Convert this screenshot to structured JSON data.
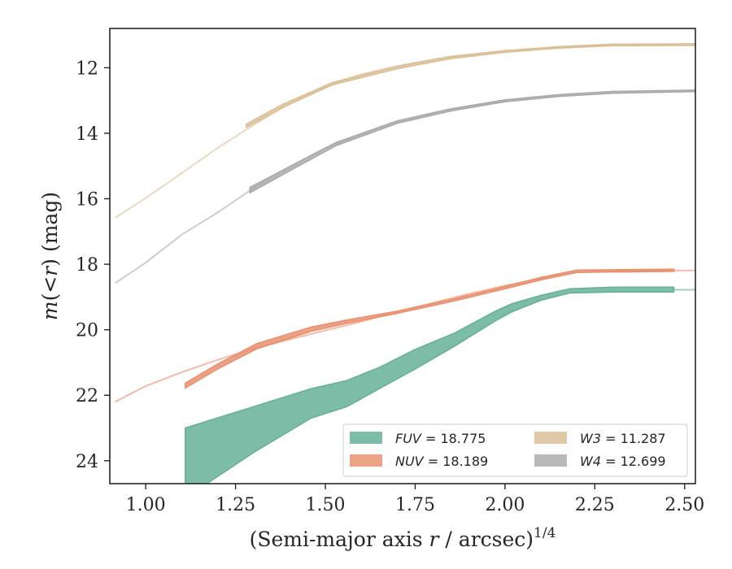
{
  "chart_data": {
    "type": "area",
    "xlabel": "(Semi-major axis r / arcsec)^1/4",
    "xlabel_parts": {
      "pre": "(Semi-major axis ",
      "var": "r",
      "post": " / arcsec)",
      "sup": "1/4"
    },
    "ylabel": "m(<r) (mag)",
    "ylabel_parts": {
      "pre": "m",
      "mid": "(<",
      "var": "r",
      "post": ") (mag)"
    },
    "xlim": [
      0.9,
      2.53
    ],
    "ylim": [
      24.7,
      10.8
    ],
    "y_inverted": true,
    "x_ticks": [
      "1.00",
      "1.25",
      "1.50",
      "1.75",
      "2.00",
      "2.25",
      "2.50"
    ],
    "y_ticks": [
      "12",
      "14",
      "16",
      "18",
      "20",
      "22",
      "24"
    ],
    "grid": false,
    "legend_position": "lower-right",
    "series": [
      {
        "name": "FUV",
        "legend_label": "FUV = 18.775",
        "legend_var": "FUV",
        "legend_value": "= 18.775",
        "color": "#66b096",
        "band_upper": [
          [
            1.11,
            23.0
          ],
          [
            1.3,
            22.35
          ],
          [
            1.46,
            21.8
          ],
          [
            1.56,
            21.55
          ],
          [
            1.65,
            21.15
          ],
          [
            1.75,
            20.6
          ],
          [
            1.86,
            20.1
          ],
          [
            1.97,
            19.45
          ],
          [
            2.02,
            19.2
          ],
          [
            2.1,
            18.95
          ],
          [
            2.18,
            18.75
          ],
          [
            2.3,
            18.7
          ],
          [
            2.47,
            18.7
          ]
        ],
        "band_lower": [
          [
            1.11,
            24.7
          ],
          [
            1.17,
            24.7
          ],
          [
            1.3,
            23.75
          ],
          [
            1.46,
            22.7
          ],
          [
            1.56,
            22.35
          ],
          [
            1.65,
            21.8
          ],
          [
            1.75,
            21.2
          ],
          [
            1.86,
            20.5
          ],
          [
            1.97,
            19.75
          ],
          [
            2.02,
            19.45
          ],
          [
            2.1,
            19.1
          ],
          [
            2.18,
            18.88
          ],
          [
            2.3,
            18.85
          ],
          [
            2.47,
            18.85
          ]
        ],
        "model_line": [
          [
            2.47,
            18.78
          ],
          [
            2.53,
            18.78
          ]
        ]
      },
      {
        "name": "NUV",
        "legend_label": "NUV = 18.189",
        "legend_var": "NUV",
        "legend_value": "= 18.189",
        "color": "#e8906f",
        "band_upper": [
          [
            1.11,
            21.63
          ],
          [
            1.2,
            21.05
          ],
          [
            1.31,
            20.42
          ],
          [
            1.46,
            19.92
          ],
          [
            1.56,
            19.7
          ],
          [
            1.7,
            19.43
          ],
          [
            1.86,
            19.05
          ],
          [
            2.0,
            18.68
          ],
          [
            2.1,
            18.4
          ],
          [
            2.2,
            18.18
          ],
          [
            2.47,
            18.15
          ]
        ],
        "band_lower": [
          [
            1.11,
            21.78
          ],
          [
            1.2,
            21.2
          ],
          [
            1.31,
            20.58
          ],
          [
            1.46,
            20.05
          ],
          [
            1.56,
            19.8
          ],
          [
            1.7,
            19.5
          ],
          [
            1.86,
            19.12
          ],
          [
            2.0,
            18.75
          ],
          [
            2.1,
            18.48
          ],
          [
            2.2,
            18.25
          ],
          [
            2.47,
            18.22
          ]
        ],
        "model_line": [
          [
            0.915,
            22.2
          ],
          [
            1.0,
            21.72
          ],
          [
            1.1,
            21.3
          ],
          [
            1.2,
            20.92
          ],
          [
            1.3,
            20.58
          ],
          [
            1.4,
            20.3
          ],
          [
            1.5,
            20.02
          ],
          [
            1.6,
            19.75
          ],
          [
            1.7,
            19.45
          ],
          [
            1.8,
            19.18
          ],
          [
            1.9,
            18.9
          ],
          [
            2.0,
            18.65
          ],
          [
            2.1,
            18.43
          ],
          [
            2.2,
            18.25
          ],
          [
            2.35,
            18.19
          ],
          [
            2.53,
            18.19
          ]
        ]
      },
      {
        "name": "W3",
        "legend_label": "W3 = 11.287",
        "legend_var": "W3",
        "legend_value": "= 11.287",
        "color": "#d9bf98",
        "band_upper": [
          [
            1.28,
            13.72
          ],
          [
            1.38,
            13.12
          ],
          [
            1.52,
            12.45
          ],
          [
            1.7,
            11.95
          ],
          [
            1.85,
            11.65
          ],
          [
            2.0,
            11.48
          ],
          [
            2.15,
            11.35
          ],
          [
            2.3,
            11.28
          ],
          [
            2.53,
            11.27
          ]
        ],
        "band_lower": [
          [
            1.28,
            13.82
          ],
          [
            1.38,
            13.22
          ],
          [
            1.52,
            12.52
          ],
          [
            1.7,
            12.03
          ],
          [
            1.85,
            11.72
          ],
          [
            2.0,
            11.53
          ],
          [
            2.15,
            11.4
          ],
          [
            2.3,
            11.33
          ],
          [
            2.53,
            11.32
          ]
        ],
        "model_line": [
          [
            0.915,
            16.58
          ],
          [
            1.0,
            15.98
          ],
          [
            1.1,
            15.22
          ],
          [
            1.2,
            14.45
          ],
          [
            1.3,
            13.75
          ],
          [
            1.4,
            13.1
          ],
          [
            1.5,
            12.55
          ],
          [
            1.6,
            12.2
          ],
          [
            1.7,
            11.95
          ],
          [
            1.8,
            11.75
          ],
          [
            1.9,
            11.6
          ],
          [
            2.0,
            11.48
          ],
          [
            2.2,
            11.34
          ],
          [
            2.53,
            11.287
          ]
        ]
      },
      {
        "name": "W4",
        "legend_label": "W4 = 12.699",
        "legend_var": "W4",
        "legend_value": "= 12.699",
        "color": "#ababab",
        "band_upper": [
          [
            1.29,
            15.65
          ],
          [
            1.4,
            15.02
          ],
          [
            1.53,
            14.28
          ],
          [
            1.7,
            13.62
          ],
          [
            1.85,
            13.25
          ],
          [
            2.0,
            12.98
          ],
          [
            2.15,
            12.82
          ],
          [
            2.3,
            12.72
          ],
          [
            2.53,
            12.68
          ]
        ],
        "band_lower": [
          [
            1.29,
            15.82
          ],
          [
            1.4,
            15.15
          ],
          [
            1.53,
            14.38
          ],
          [
            1.7,
            13.7
          ],
          [
            1.85,
            13.32
          ],
          [
            2.0,
            13.04
          ],
          [
            2.15,
            12.88
          ],
          [
            2.3,
            12.78
          ],
          [
            2.53,
            12.73
          ]
        ],
        "model_line": [
          [
            0.915,
            18.58
          ],
          [
            1.0,
            17.95
          ],
          [
            1.1,
            17.1
          ],
          [
            1.2,
            16.42
          ],
          [
            1.3,
            15.68
          ],
          [
            1.4,
            15.02
          ],
          [
            1.5,
            14.45
          ],
          [
            1.6,
            14.05
          ],
          [
            1.7,
            13.68
          ],
          [
            1.85,
            13.3
          ],
          [
            2.0,
            13.02
          ],
          [
            2.2,
            12.8
          ],
          [
            2.53,
            12.699
          ]
        ]
      }
    ]
  }
}
